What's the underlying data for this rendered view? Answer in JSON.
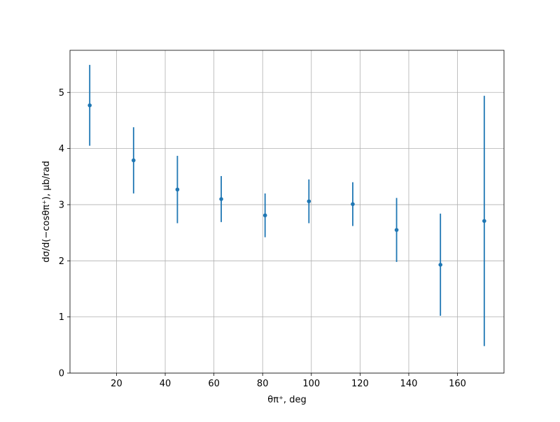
{
  "chart_data": {
    "type": "errorbar",
    "xlabel": "θπ⁺, deg",
    "ylabel": "dσ/d(−cosθπ⁺), μb/rad",
    "x": [
      9,
      27,
      45,
      63,
      81,
      99,
      117,
      135,
      153,
      171
    ],
    "values": [
      4.77,
      3.79,
      3.27,
      3.1,
      2.81,
      3.06,
      3.01,
      2.55,
      1.93,
      2.71
    ],
    "errors": [
      0.72,
      0.59,
      0.6,
      0.41,
      0.39,
      0.39,
      0.39,
      0.57,
      0.91,
      2.23
    ],
    "color": "#1f77b4",
    "xlim": [
      0.9,
      179.1
    ],
    "ylim": [
      0,
      5.75
    ],
    "xticks": [
      20,
      40,
      60,
      80,
      100,
      120,
      140,
      160
    ],
    "yticks": [
      0,
      1,
      2,
      3,
      4,
      5
    ],
    "grid": true
  }
}
